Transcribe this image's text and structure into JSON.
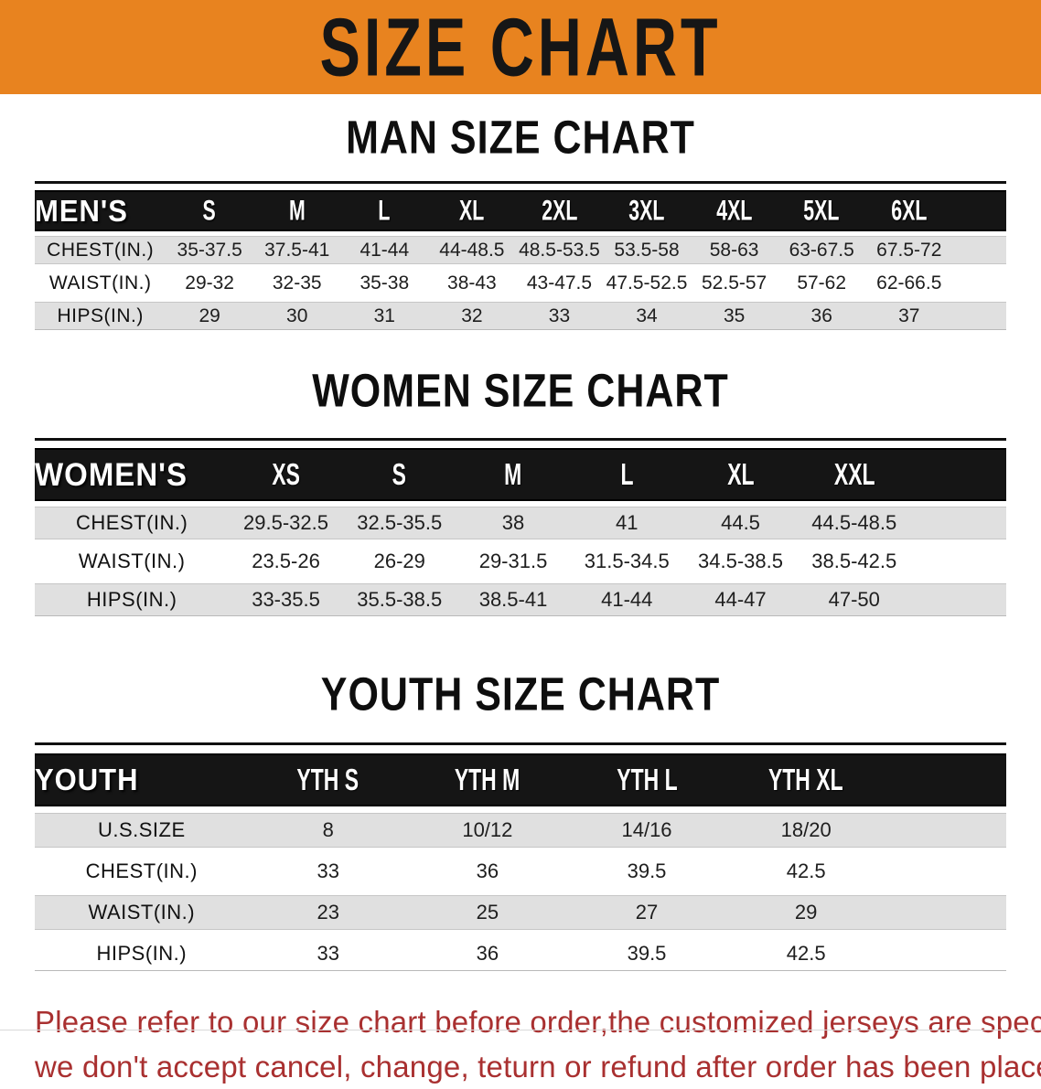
{
  "banner": {
    "title": "SIZE CHART"
  },
  "colors": {
    "banner-orange": "#E8831F",
    "header-black": "#151515",
    "row-gray": "#E0E0E0",
    "disclaimer-red": "#A93030"
  },
  "men": {
    "section_title": "MAN SIZE CHART",
    "header_label": "MEN'S",
    "sizes": [
      "S",
      "M",
      "L",
      "XL",
      "2XL",
      "3XL",
      "4XL",
      "5XL",
      "6XL"
    ],
    "rows": [
      {
        "label": "CHEST(IN.)",
        "values": [
          "35-37.5",
          "37.5-41",
          "41-44",
          "44-48.5",
          "48.5-53.5",
          "53.5-58",
          "58-63",
          "63-67.5",
          "67.5-72"
        ]
      },
      {
        "label": "WAIST(IN.)",
        "values": [
          "29-32",
          "32-35",
          "35-38",
          "38-43",
          "43-47.5",
          "47.5-52.5",
          "52.5-57",
          "57-62",
          "62-66.5"
        ]
      },
      {
        "label": "HIPS(IN.)",
        "values": [
          "29",
          "30",
          "31",
          "32",
          "33",
          "34",
          "35",
          "36",
          "37"
        ]
      }
    ]
  },
  "women": {
    "section_title": "WOMEN SIZE CHART",
    "header_label": "WOMEN'S",
    "sizes": [
      "XS",
      "S",
      "M",
      "L",
      "XL",
      "XXL"
    ],
    "rows": [
      {
        "label": "CHEST(IN.)",
        "values": [
          "29.5-32.5",
          "32.5-35.5",
          "38",
          "41",
          "44.5",
          "44.5-48.5"
        ]
      },
      {
        "label": "WAIST(IN.)",
        "values": [
          "23.5-26",
          "26-29",
          "29-31.5",
          "31.5-34.5",
          "34.5-38.5",
          "38.5-42.5"
        ]
      },
      {
        "label": "HIPS(IN.)",
        "values": [
          "33-35.5",
          "35.5-38.5",
          "38.5-41",
          "41-44",
          "44-47",
          "47-50"
        ]
      }
    ]
  },
  "youth": {
    "section_title": "YOUTH SIZE CHART",
    "header_label": "YOUTH",
    "sizes": [
      "YTH S",
      "YTH M",
      "YTH L",
      "YTH XL"
    ],
    "rows": [
      {
        "label": "U.S.SIZE",
        "values": [
          "8",
          "10/12",
          "14/16",
          "18/20"
        ]
      },
      {
        "label": "CHEST(IN.)",
        "values": [
          "33",
          "36",
          "39.5",
          "42.5"
        ]
      },
      {
        "label": "WAIST(IN.)",
        "values": [
          "23",
          "25",
          "27",
          "29"
        ]
      },
      {
        "label": "HIPS(IN.)",
        "values": [
          "33",
          "36",
          "39.5",
          "42.5"
        ]
      }
    ]
  },
  "disclaimer": {
    "line1": "Please refer to our size chart before order,the customized jerseys are special products,",
    "line2": "we don't accept cancel, change, teturn or refund after order has been placed!"
  }
}
